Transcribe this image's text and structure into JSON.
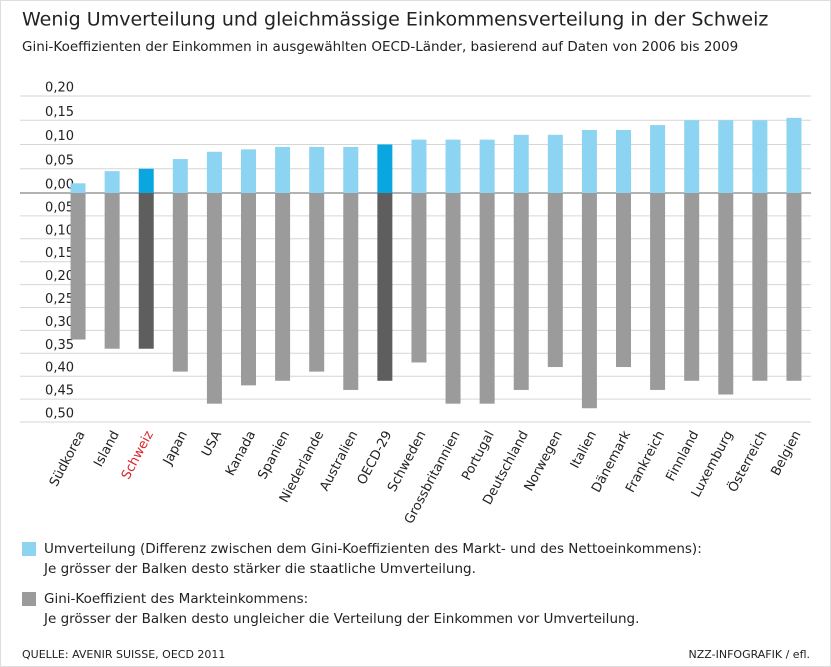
{
  "chart_data": {
    "type": "diverging-bar",
    "title": "Wenig Umverteilung und gleichmässige Einkommensverteilung in der Schweiz",
    "subtitle": "Gini-Koeffizienten der Einkommen in ausgewählten OECD-Länder, basierend auf Daten von 2006 bis 2009",
    "categories": [
      "Südkorea",
      "Island",
      "Schweiz",
      "Japan",
      "USA",
      "Kanada",
      "Spanien",
      "Niederlande",
      "Australien",
      "OECD-29",
      "Schweden",
      "Grossbritannien",
      "Portugal",
      "Deutschland",
      "Norwegen",
      "Italien",
      "Dänemark",
      "Frankreich",
      "Finnland",
      "Luxemburg",
      "Österreich",
      "Belgien"
    ],
    "category_colors": [
      "#222222",
      "#222222",
      "#d9272e",
      "#222222",
      "#222222",
      "#222222",
      "#222222",
      "#222222",
      "#222222",
      "#222222",
      "#222222",
      "#222222",
      "#222222",
      "#222222",
      "#222222",
      "#222222",
      "#222222",
      "#222222",
      "#222222",
      "#222222",
      "#222222",
      "#222222"
    ],
    "series": [
      {
        "name": "Umverteilung (Differenz zwischen dem Gini-Koeffizienten des Markt- und des Nettoeinkommens):",
        "description": "Je grösser der Balken desto stärker die staatliche Umverteilung.",
        "color": "#8dd3f2",
        "colors": [
          "#8dd3f2",
          "#8dd3f2",
          "#0aa6e0",
          "#8dd3f2",
          "#8dd3f2",
          "#8dd3f2",
          "#8dd3f2",
          "#8dd3f2",
          "#8dd3f2",
          "#0aa6e0",
          "#8dd3f2",
          "#8dd3f2",
          "#8dd3f2",
          "#8dd3f2",
          "#8dd3f2",
          "#8dd3f2",
          "#8dd3f2",
          "#8dd3f2",
          "#8dd3f2",
          "#8dd3f2",
          "#8dd3f2",
          "#8dd3f2"
        ],
        "values": [
          0.02,
          0.045,
          0.05,
          0.07,
          0.085,
          0.09,
          0.095,
          0.095,
          0.095,
          0.1,
          0.11,
          0.11,
          0.11,
          0.12,
          0.12,
          0.13,
          0.13,
          0.14,
          0.15,
          0.15,
          0.15,
          0.155
        ]
      },
      {
        "name": "Gini-Koeffizient des Markteinkommens:",
        "description": "Je grösser der Balken desto ungleicher die Verteilung der Einkommen vor Umverteilung.",
        "color": "#9b9b9b",
        "axis": "y2",
        "colors": [
          "#9b9b9b",
          "#9b9b9b",
          "#5e5e5e",
          "#9b9b9b",
          "#9b9b9b",
          "#9b9b9b",
          "#9b9b9b",
          "#9b9b9b",
          "#9b9b9b",
          "#5e5e5e",
          "#9b9b9b",
          "#9b9b9b",
          "#9b9b9b",
          "#9b9b9b",
          "#9b9b9b",
          "#9b9b9b",
          "#9b9b9b",
          "#9b9b9b",
          "#9b9b9b",
          "#9b9b9b",
          "#9b9b9b",
          "#9b9b9b"
        ],
        "values": [
          0.32,
          0.34,
          0.34,
          0.39,
          0.46,
          0.42,
          0.41,
          0.39,
          0.43,
          0.41,
          0.37,
          0.46,
          0.46,
          0.43,
          0.38,
          0.47,
          0.38,
          0.43,
          0.41,
          0.44,
          0.41,
          0.41
        ]
      }
    ],
    "ylim": [
      0,
      0.2
    ],
    "yticks": [
      {
        "value": 0,
        "label": "0,00"
      },
      {
        "value": 0.05,
        "label": "0,05"
      },
      {
        "value": 0.1,
        "label": "0,10"
      },
      {
        "value": 0.15,
        "label": "0,15"
      },
      {
        "value": 0.2,
        "label": "0,20"
      }
    ],
    "y2lim": [
      0,
      0.5
    ],
    "y2_direction": "down",
    "y2ticks": [
      {
        "value": 0.05,
        "label": "0,05"
      },
      {
        "value": 0.1,
        "label": "0,10"
      },
      {
        "value": 0.15,
        "label": "0,15"
      },
      {
        "value": 0.2,
        "label": "0,20"
      },
      {
        "value": 0.25,
        "label": "0,25"
      },
      {
        "value": 0.3,
        "label": "0,30"
      },
      {
        "value": 0.35,
        "label": "0,35"
      },
      {
        "value": 0.4,
        "label": "0,40"
      },
      {
        "value": 0.45,
        "label": "0,45"
      },
      {
        "value": 0.5,
        "label": "0,50"
      }
    ],
    "grid": true,
    "source": "QUELLE: AVENIR SUISSE, OECD 2011",
    "credit": "NZZ-INFOGRAFIK / efl."
  }
}
